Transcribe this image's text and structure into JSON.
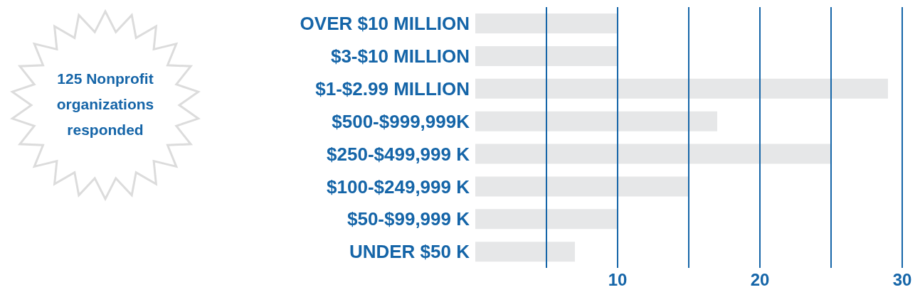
{
  "chart_data": {
    "type": "bar",
    "orientation": "horizontal",
    "categories": [
      "OVER $10 MILLION",
      "$3-$10 MILLION",
      "$1-$2.99 MILLION",
      "$500-$999,999K",
      "$250-$499,999 K",
      "$100-$249,999 K",
      "$50-$99,999 K",
      "UNDER $50 K"
    ],
    "values": [
      10,
      10,
      29,
      17,
      25,
      15,
      10,
      7
    ],
    "color": "#e6e7e8",
    "xlim": [
      0,
      30
    ],
    "xticks": [
      {
        "value": 5,
        "label": null
      },
      10,
      {
        "value": 15,
        "label": null
      },
      20,
      {
        "value": 25,
        "label": null
      },
      30
    ],
    "grid": "x",
    "annotations": [
      "125 Nonprofit organizations responded"
    ]
  }
}
